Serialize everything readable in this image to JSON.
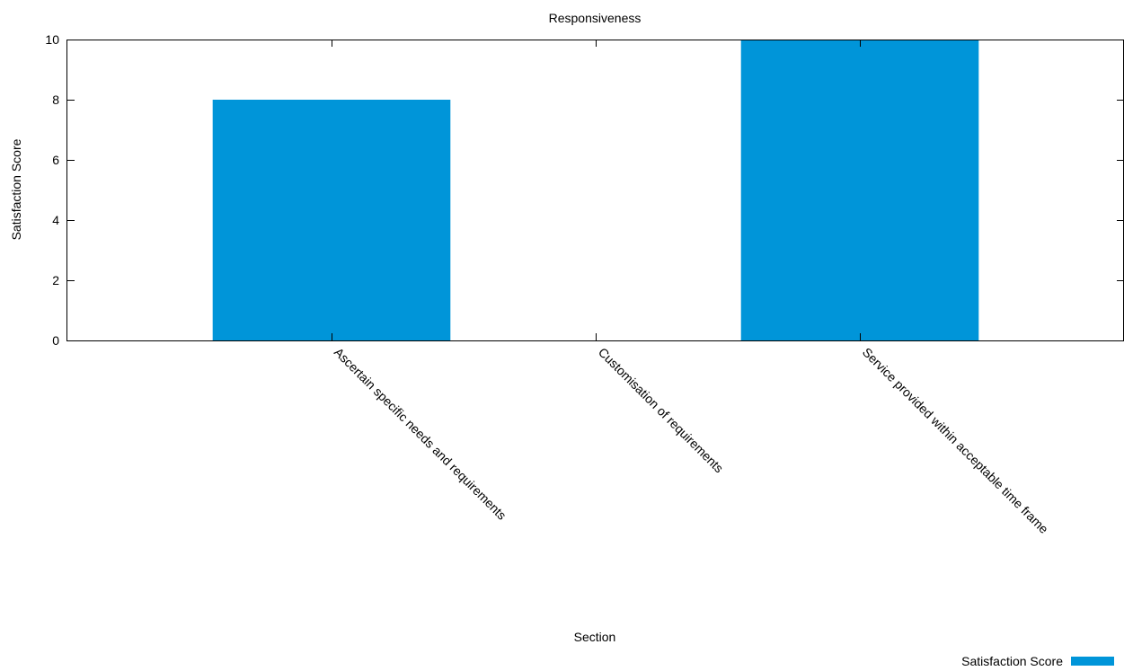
{
  "chart_data": {
    "type": "bar",
    "title": "Responsiveness",
    "xlabel": "Section",
    "ylabel": "Satisfaction Score",
    "categories": [
      "Ascertain specific needs and requirements",
      "Customisation of requirements",
      "Service provided within acceptable time frame"
    ],
    "series": [
      {
        "name": "Satisfaction Score",
        "values": [
          8,
          0,
          10
        ],
        "color": "#0095d9"
      }
    ],
    "ylim": [
      0,
      10
    ],
    "yticks": [
      0,
      2,
      4,
      6,
      8,
      10
    ],
    "grid": false,
    "legend_position": "bottom-right"
  }
}
